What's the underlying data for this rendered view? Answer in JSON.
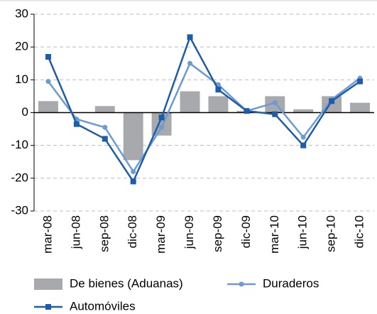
{
  "chart_data": {
    "type": "combo",
    "categories": [
      "mar-08",
      "jun-08",
      "sep-08",
      "dic-08",
      "mar-09",
      "jun-09",
      "sep-09",
      "dic-09",
      "mar-10",
      "jun-10",
      "sep-10",
      "dic-10"
    ],
    "series": [
      {
        "name": "De bienes (Aduanas)",
        "type": "bar",
        "color": "#a7a9ac",
        "values": [
          3.5,
          0,
          2,
          -14.5,
          -7,
          6.5,
          5,
          0.5,
          5,
          1,
          5,
          3
        ]
      },
      {
        "name": "Duraderos",
        "type": "line",
        "marker": "circle",
        "color": "#6b9bd2",
        "values": [
          9.5,
          -2,
          -4.5,
          -18,
          -4.5,
          15,
          8.5,
          0.5,
          3,
          -7.5,
          4,
          10.5
        ]
      },
      {
        "name": "Automóviles",
        "type": "line",
        "marker": "square",
        "color": "#1f5ca8",
        "values": [
          17,
          -3.5,
          -8,
          -21,
          -1.5,
          23,
          7,
          0.5,
          -0.5,
          -10,
          3.5,
          9.5
        ]
      }
    ],
    "ylim": [
      -30,
      30
    ],
    "yticks": [
      -30,
      -20,
      -10,
      0,
      10,
      20,
      30
    ],
    "grid": true
  }
}
